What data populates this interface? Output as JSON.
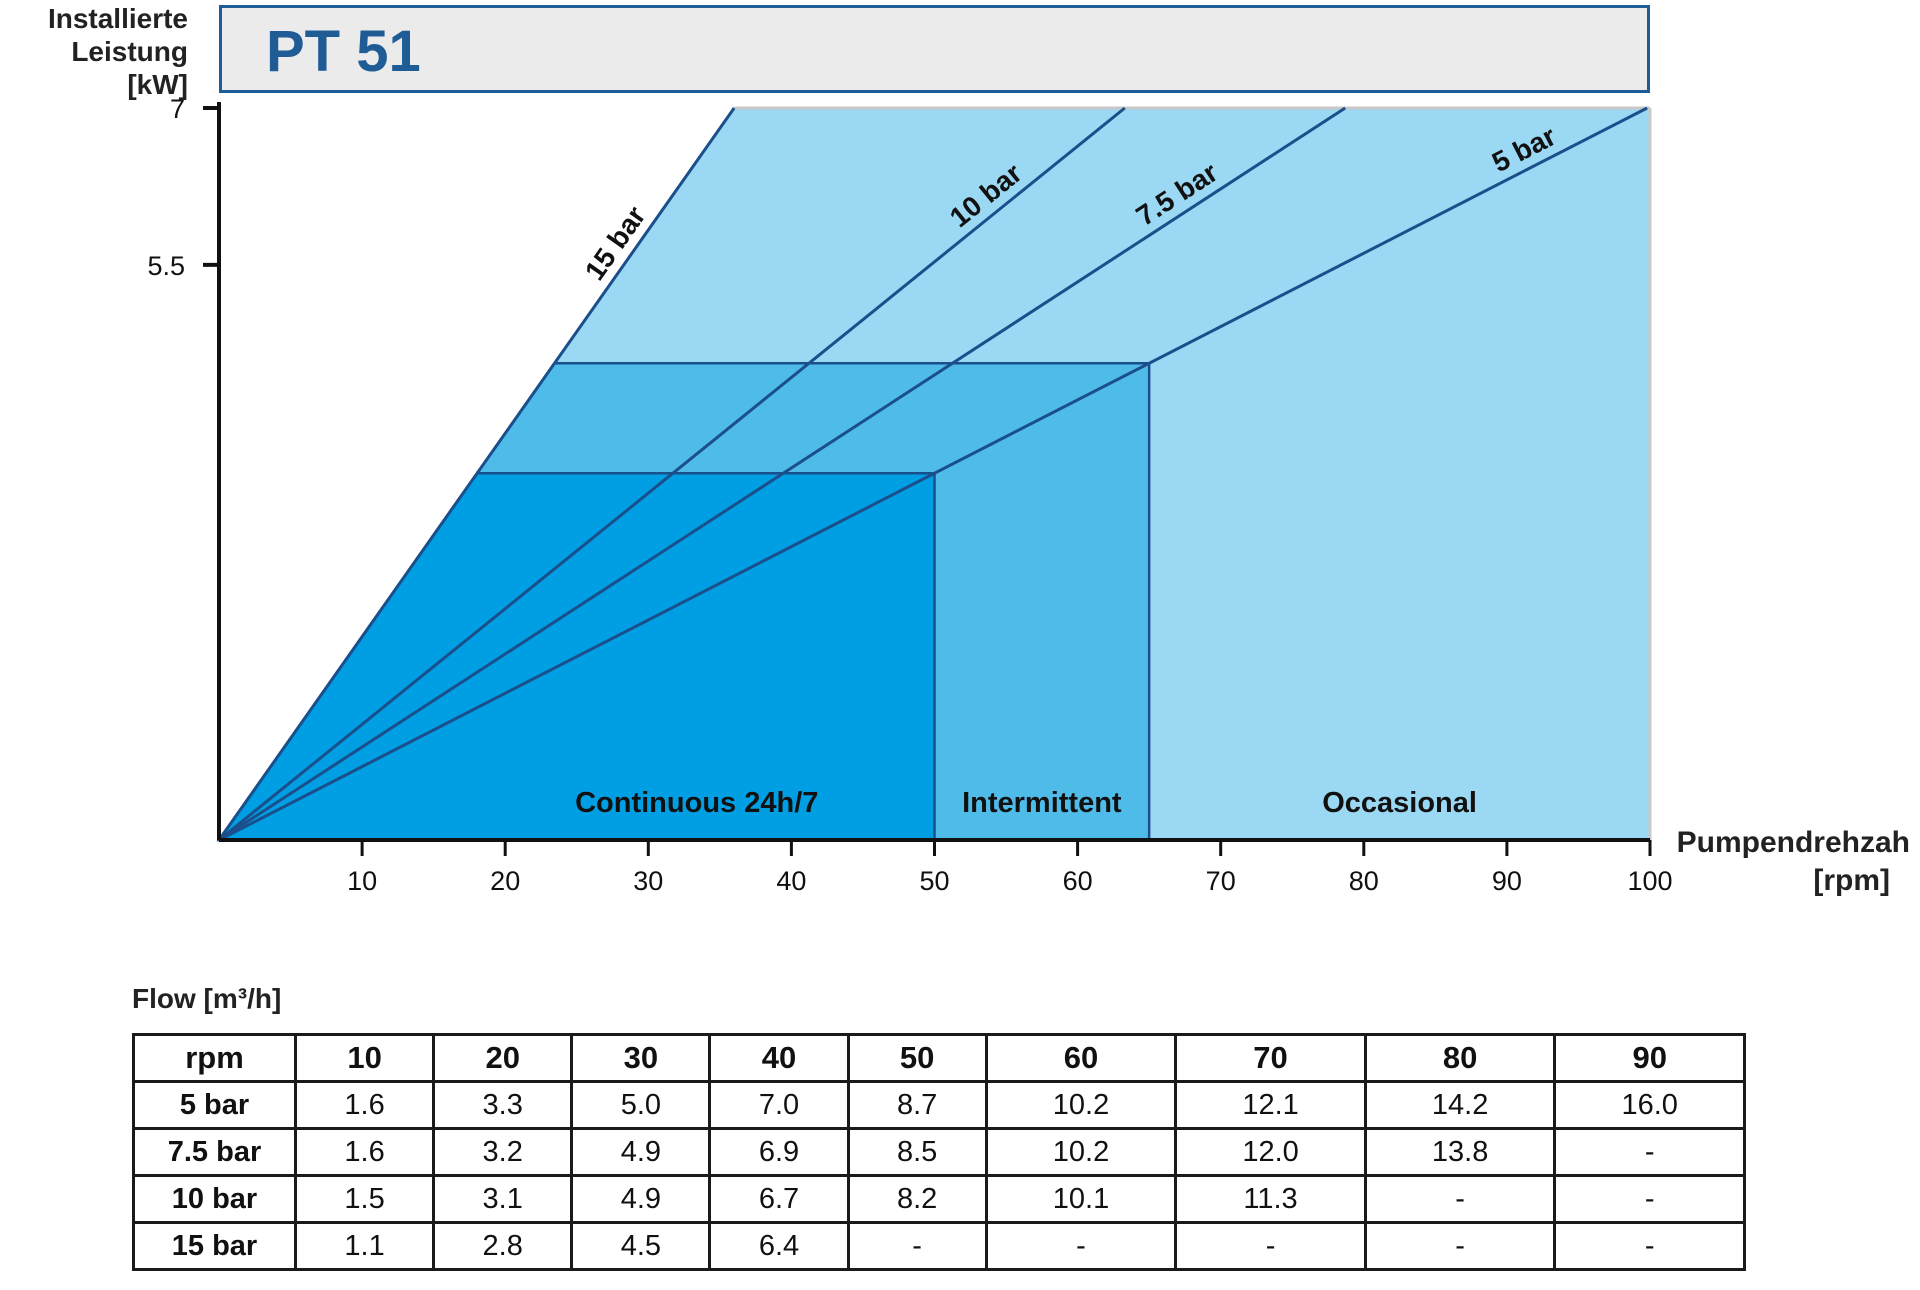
{
  "header": {
    "title": "PT 51"
  },
  "chart_data": {
    "type": "line",
    "ylabel_lines": [
      "Installierte",
      "Leistung",
      "[kW]"
    ],
    "xlabel_lines": [
      "Pumpendrehzah",
      "[rpm]"
    ],
    "xlim": [
      0,
      100
    ],
    "xticks": [
      10,
      20,
      30,
      40,
      50,
      60,
      70,
      80,
      90,
      100
    ],
    "yticks": [
      5.5,
      7
    ],
    "ylim": [
      0,
      7
    ],
    "regions": [
      {
        "label": "Continuous 24h/7",
        "x_range": [
          0,
          50
        ],
        "color": "#009fe3"
      },
      {
        "label": "Intermittent",
        "x_range": [
          50,
          65
        ],
        "color": "#4fbbe9"
      },
      {
        "label": "Occasional",
        "x_range": [
          65,
          100
        ],
        "color": "#9bd8f3"
      }
    ],
    "series": [
      {
        "name": "15 bar",
        "points": [
          [
            0,
            0
          ],
          [
            36,
            7
          ]
        ]
      },
      {
        "name": "10 bar",
        "points": [
          [
            0,
            0
          ],
          [
            63.3,
            7
          ]
        ]
      },
      {
        "name": "7.5 bar",
        "points": [
          [
            0,
            0
          ],
          [
            78.7,
            7
          ]
        ]
      },
      {
        "name": "5 bar",
        "points": [
          [
            0,
            0
          ],
          [
            99.8,
            7
          ]
        ]
      }
    ],
    "colors": {
      "dark": "#009fe3",
      "mid": "#4fbbe9",
      "light": "#9bd8f3",
      "line": "#1a4f8c"
    }
  },
  "flow_table": {
    "title": "Flow [m³/h]",
    "header": [
      "rpm",
      "10",
      "20",
      "30",
      "40",
      "50",
      "60",
      "70",
      "80",
      "90"
    ],
    "rows": [
      [
        "5 bar",
        "1.6",
        "3.3",
        "5.0",
        "7.0",
        "8.7",
        "10.2",
        "12.1",
        "14.2",
        "16.0"
      ],
      [
        "7.5 bar",
        "1.6",
        "3.2",
        "4.9",
        "6.9",
        "8.5",
        "10.2",
        "12.0",
        "13.8",
        "-"
      ],
      [
        "10 bar",
        "1.5",
        "3.1",
        "4.9",
        "6.7",
        "8.2",
        "10.1",
        "11.3",
        "-",
        "-"
      ],
      [
        "15 bar",
        "1.1",
        "2.8",
        "4.5",
        "6.4",
        "-",
        "-",
        "-",
        "-",
        "-"
      ]
    ]
  }
}
